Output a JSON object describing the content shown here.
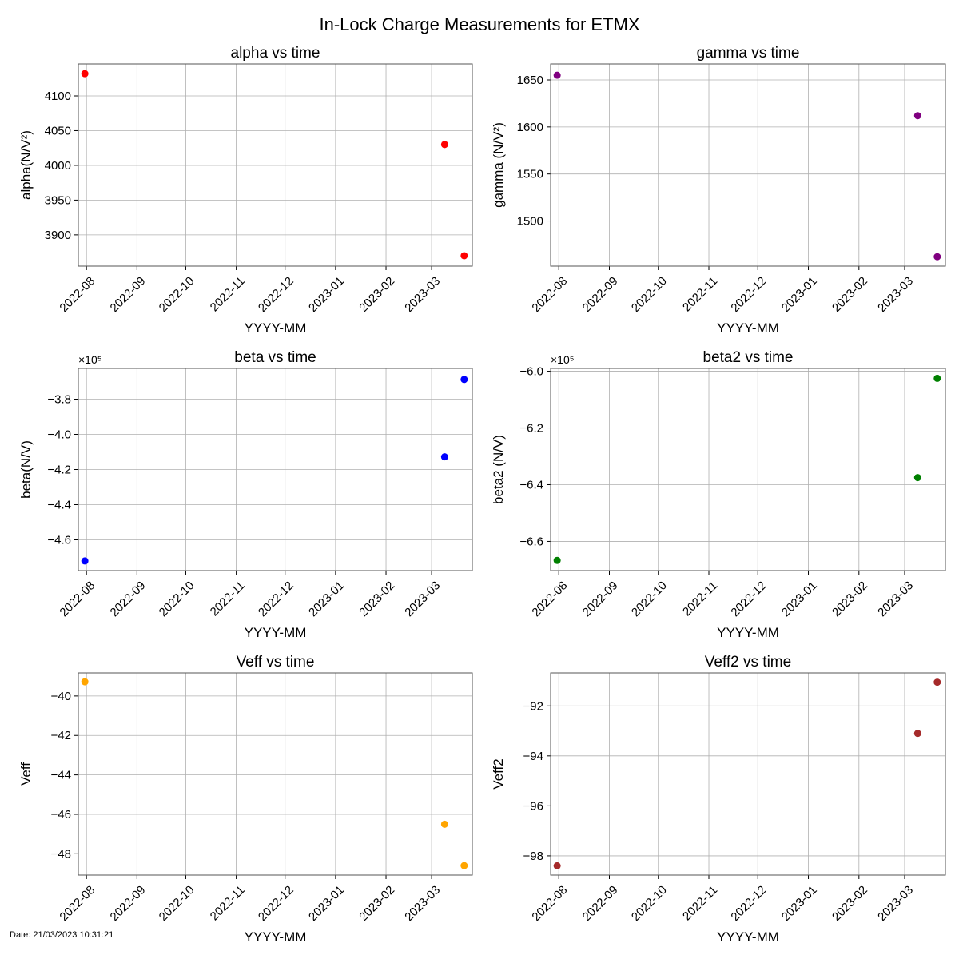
{
  "figure": {
    "title": "In-Lock Charge Measurements for ETMX",
    "footer": "Date: 21/03/2023 10:31:21"
  },
  "chart_data": [
    {
      "type": "scatter",
      "title": "alpha vs time",
      "xlabel": "YYYY-MM",
      "ylabel": "alpha(N/V²)",
      "xticks": [
        "2022-08",
        "2022-09",
        "2022-10",
        "2022-11",
        "2022-12",
        "2023-01",
        "2023-02",
        "2023-03"
      ],
      "xlim": [
        "2022-07-27",
        "2023-03-26"
      ],
      "yticks": [
        3900,
        3950,
        4000,
        4050,
        4100
      ],
      "ylim": [
        3855,
        4146
      ],
      "offset_text": "",
      "grid": true,
      "color": "#ff0000",
      "points": [
        {
          "x": "2022-07-31",
          "y": 4132
        },
        {
          "x": "2023-03-09",
          "y": 4030
        },
        {
          "x": "2023-03-21",
          "y": 3870
        }
      ]
    },
    {
      "type": "scatter",
      "title": "gamma vs time",
      "xlabel": "YYYY-MM",
      "ylabel": "gamma (N/V²)",
      "xticks": [
        "2022-08",
        "2022-09",
        "2022-10",
        "2022-11",
        "2022-12",
        "2023-01",
        "2023-02",
        "2023-03"
      ],
      "xlim": [
        "2022-07-27",
        "2023-03-26"
      ],
      "yticks": [
        1500,
        1550,
        1600,
        1650
      ],
      "ylim": [
        1452,
        1667
      ],
      "offset_text": "",
      "grid": true,
      "color": "#800080",
      "points": [
        {
          "x": "2022-07-31",
          "y": 1655
        },
        {
          "x": "2023-03-09",
          "y": 1612
        },
        {
          "x": "2023-03-21",
          "y": 1462
        }
      ]
    },
    {
      "type": "scatter",
      "title": "beta vs time",
      "xlabel": "YYYY-MM",
      "ylabel": "beta(N/V)",
      "xticks": [
        "2022-08",
        "2022-09",
        "2022-10",
        "2022-11",
        "2022-12",
        "2023-01",
        "2023-02",
        "2023-03"
      ],
      "xlim": [
        "2022-07-27",
        "2023-03-26"
      ],
      "yticks": [
        -4.6,
        -4.4,
        -4.2,
        -4.0,
        -3.8
      ],
      "ylim": [
        -4.775,
        -3.625
      ],
      "offset_text": "×10⁵",
      "grid": true,
      "color": "#0000ff",
      "points": [
        {
          "x": "2022-07-31",
          "y": -4.72
        },
        {
          "x": "2023-03-09",
          "y": -4.128
        },
        {
          "x": "2023-03-21",
          "y": -3.688
        }
      ]
    },
    {
      "type": "scatter",
      "title": "beta2 vs time",
      "xlabel": "YYYY-MM",
      "ylabel": "beta2 (N/V)",
      "xticks": [
        "2022-08",
        "2022-09",
        "2022-10",
        "2022-11",
        "2022-12",
        "2023-01",
        "2023-02",
        "2023-03"
      ],
      "xlim": [
        "2022-07-27",
        "2023-03-26"
      ],
      "yticks": [
        -6.6,
        -6.4,
        -6.2,
        -6.0
      ],
      "ylim": [
        -6.703,
        -5.99
      ],
      "offset_text": "×10⁵",
      "grid": true,
      "color": "#008000",
      "points": [
        {
          "x": "2022-07-31",
          "y": -6.667
        },
        {
          "x": "2023-03-09",
          "y": -6.375
        },
        {
          "x": "2023-03-21",
          "y": -6.025
        }
      ]
    },
    {
      "type": "scatter",
      "title": "Veff vs time",
      "xlabel": "YYYY-MM",
      "ylabel": "Veff",
      "xticks": [
        "2022-08",
        "2022-09",
        "2022-10",
        "2022-11",
        "2022-12",
        "2023-01",
        "2023-02",
        "2023-03"
      ],
      "xlim": [
        "2022-07-27",
        "2023-03-26"
      ],
      "yticks": [
        -48,
        -46,
        -44,
        -42,
        -40
      ],
      "ylim": [
        -49.08,
        -38.83
      ],
      "offset_text": "",
      "grid": true,
      "color": "#ffa500",
      "points": [
        {
          "x": "2022-07-31",
          "y": -39.28
        },
        {
          "x": "2023-03-09",
          "y": -46.5
        },
        {
          "x": "2023-03-21",
          "y": -48.6
        }
      ]
    },
    {
      "type": "scatter",
      "title": "Veff2 vs time",
      "xlabel": "YYYY-MM",
      "ylabel": "Veff2",
      "xticks": [
        "2022-08",
        "2022-09",
        "2022-10",
        "2022-11",
        "2022-12",
        "2023-01",
        "2023-02",
        "2023-03"
      ],
      "xlim": [
        "2022-07-27",
        "2023-03-26"
      ],
      "yticks": [
        -98,
        -96,
        -94,
        -92
      ],
      "ylim": [
        -98.77,
        -90.68
      ],
      "offset_text": "",
      "grid": true,
      "color": "#a52a2a",
      "points": [
        {
          "x": "2022-07-31",
          "y": -98.4
        },
        {
          "x": "2023-03-09",
          "y": -93.1
        },
        {
          "x": "2023-03-21",
          "y": -91.05
        }
      ]
    }
  ]
}
